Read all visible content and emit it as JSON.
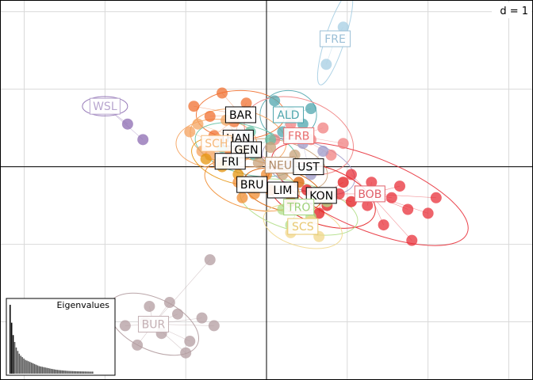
{
  "chart_data": {
    "type": "scatter",
    "title": "",
    "xlabel": "",
    "ylabel": "",
    "xlim": [
      -3.3,
      3.3
    ],
    "ylim": [
      -2.75,
      2.15
    ],
    "grid": true,
    "grid_step": 1,
    "scale_label": "d = 1",
    "inset": {
      "title": "Eigenvalues",
      "type": "bar",
      "values": [
        1.0,
        0.74,
        0.56,
        0.46,
        0.38,
        0.33,
        0.29,
        0.26,
        0.24,
        0.22,
        0.2,
        0.19,
        0.18,
        0.17,
        0.16,
        0.15,
        0.14,
        0.13,
        0.12,
        0.11,
        0.105,
        0.1,
        0.095,
        0.09,
        0.085,
        0.08,
        0.075,
        0.07,
        0.066,
        0.062,
        0.058,
        0.055,
        0.052,
        0.05,
        0.048,
        0.046,
        0.044,
        0.042,
        0.04,
        0.039,
        0.038,
        0.037,
        0.036,
        0.035,
        0.034,
        0.034,
        0.033,
        0.033,
        0.032,
        0.032,
        0.031,
        0.031,
        0.03,
        0.03,
        0.03
      ]
    },
    "groups": [
      {
        "label": "FRE",
        "color": "#a6cee3",
        "labelColor": "#9bbfd6",
        "center": [
          0.85,
          1.65
        ],
        "ellipse": {
          "rx": 0.6,
          "ry": 0.12,
          "angle": 72
        },
        "points": [
          [
            0.74,
            1.32
          ],
          [
            0.95,
            1.8
          ]
        ]
      },
      {
        "label": "WSL",
        "color": "#8c6bb1",
        "labelColor": "#b8a6cf",
        "center": [
          -2.0,
          0.78
        ],
        "ellipse": {
          "rx": 0.28,
          "ry": 0.12,
          "angle": 0
        },
        "points": [
          [
            -1.72,
            0.55
          ],
          [
            -1.53,
            0.35
          ]
        ]
      },
      {
        "label": "BAR",
        "color": "#f07030",
        "labelColor": "#000000",
        "center": [
          -0.32,
          0.67
        ],
        "ellipse": {
          "rx": 0.55,
          "ry": 0.3,
          "angle": 0
        },
        "points": [
          [
            -0.9,
            0.78
          ],
          [
            -0.7,
            0.65
          ],
          [
            -0.55,
            0.95
          ],
          [
            -0.4,
            0.58
          ],
          [
            -0.25,
            0.82
          ],
          [
            -0.65,
            0.4
          ],
          [
            -0.45,
            0.2
          ]
        ]
      },
      {
        "label": "ALD",
        "color": "#4fa6ad",
        "labelColor": "#4fa6ad",
        "center": [
          0.27,
          0.67
        ],
        "ellipse": {
          "rx": 0.35,
          "ry": 0.3,
          "angle": 0
        },
        "points": [
          [
            0.1,
            0.85
          ],
          [
            0.3,
            0.7
          ],
          [
            0.45,
            0.55
          ],
          [
            0.2,
            0.45
          ],
          [
            0.55,
            0.75
          ]
        ]
      },
      {
        "label": "HAN",
        "color": "#f4a460",
        "labelColor": "#000000",
        "center": [
          -0.35,
          0.37
        ],
        "ellipse": {
          "rx": 0.6,
          "ry": 0.35,
          "angle": -10
        },
        "points": [
          [
            -0.85,
            0.55
          ],
          [
            -0.6,
            0.35
          ],
          [
            -0.7,
            0.15
          ],
          [
            -0.3,
            0.25
          ],
          [
            -0.5,
            0.6
          ]
        ]
      },
      {
        "label": "SCH",
        "color": "#f5a25d",
        "labelColor": "#f5b87a",
        "center": [
          -0.62,
          0.3
        ],
        "ellipse": {
          "rx": 0.5,
          "ry": 0.3,
          "angle": 0
        },
        "points": [
          [
            -0.95,
            0.45
          ],
          [
            -0.8,
            0.2
          ],
          [
            -0.6,
            0.05
          ],
          [
            -0.45,
            0.4
          ]
        ]
      },
      {
        "label": "FRB",
        "color": "#f08080",
        "labelColor": "#e86e6e",
        "center": [
          0.4,
          0.4
        ],
        "ellipse": {
          "rx": 0.7,
          "ry": 0.45,
          "angle": -20
        },
        "points": [
          [
            0.1,
            0.35
          ],
          [
            0.3,
            0.55
          ],
          [
            0.55,
            0.35
          ],
          [
            0.7,
            0.5
          ],
          [
            0.8,
            0.15
          ],
          [
            0.95,
            0.3
          ]
        ]
      },
      {
        "label": "GEN",
        "color": "#66c2a5",
        "labelColor": "#000000",
        "center": [
          -0.25,
          0.22
        ],
        "ellipse": {
          "rx": 0.65,
          "ry": 0.3,
          "angle": -15
        },
        "points": [
          [
            -0.55,
            0.25
          ],
          [
            -0.4,
            0.05
          ],
          [
            -0.15,
            0.15
          ],
          [
            0.05,
            0.35
          ],
          [
            -0.2,
            0.45
          ]
        ]
      },
      {
        "label": "FRI",
        "color": "#e6950f",
        "labelColor": "#000000",
        "center": [
          -0.45,
          0.07
        ],
        "ellipse": {
          "rx": 0.5,
          "ry": 0.25,
          "angle": -20
        },
        "points": [
          [
            -0.75,
            0.1
          ],
          [
            -0.55,
            0.0
          ],
          [
            -0.35,
            -0.1
          ],
          [
            -0.3,
            0.2
          ]
        ]
      },
      {
        "label": "NEU",
        "color": "#c8a27a",
        "labelColor": "#b08a66",
        "center": [
          0.17,
          0.02
        ],
        "ellipse": {
          "rx": 0.6,
          "ry": 0.3,
          "angle": -15
        },
        "points": [
          [
            -0.1,
            0.05
          ],
          [
            0.2,
            -0.1
          ],
          [
            0.35,
            0.15
          ],
          [
            0.05,
            0.25
          ]
        ]
      },
      {
        "label": "UST",
        "color": "#9e9ac8",
        "labelColor": "#000000",
        "center": [
          0.52,
          0.0
        ],
        "ellipse": {
          "rx": 0.6,
          "ry": 0.3,
          "angle": -20
        },
        "points": [
          [
            0.3,
            0.05
          ],
          [
            0.55,
            -0.1
          ],
          [
            0.7,
            0.2
          ],
          [
            0.45,
            0.3
          ]
        ]
      },
      {
        "label": "BRU",
        "color": "#f08c30",
        "labelColor": "#000000",
        "center": [
          -0.18,
          -0.23
        ],
        "ellipse": {
          "rx": 0.6,
          "ry": 0.3,
          "angle": -15
        },
        "points": [
          [
            -0.35,
            -0.2
          ],
          [
            -0.15,
            -0.35
          ],
          [
            0.0,
            -0.1
          ],
          [
            -0.3,
            -0.4
          ]
        ]
      },
      {
        "label": "LIM",
        "color": "#d95f02",
        "labelColor": "#000000",
        "center": [
          0.2,
          -0.3
        ],
        "ellipse": {
          "rx": 0.5,
          "ry": 0.25,
          "angle": -15
        },
        "points": [
          [
            0.05,
            -0.3
          ],
          [
            0.3,
            -0.45
          ],
          [
            0.4,
            -0.2
          ]
        ]
      },
      {
        "label": "KON",
        "color": "#e31a1c",
        "labelColor": "#000000",
        "center": [
          0.68,
          -0.37
        ],
        "ellipse": {
          "rx": 0.7,
          "ry": 0.35,
          "angle": -20
        },
        "points": [
          [
            0.5,
            -0.3
          ],
          [
            0.75,
            -0.5
          ],
          [
            0.95,
            -0.2
          ],
          [
            0.65,
            -0.6
          ],
          [
            1.05,
            -0.45
          ]
        ]
      },
      {
        "label": "BOB",
        "color": "#e8303a",
        "labelColor": "#e0606a",
        "center": [
          1.28,
          -0.35
        ],
        "ellipse": {
          "rx": 1.3,
          "ry": 0.45,
          "angle": -22
        },
        "points": [
          [
            1.05,
            -0.1
          ],
          [
            1.3,
            -0.2
          ],
          [
            1.55,
            -0.4
          ],
          [
            1.75,
            -0.55
          ],
          [
            2.0,
            -0.6
          ],
          [
            1.45,
            -0.75
          ],
          [
            1.8,
            -0.95
          ],
          [
            1.25,
            -0.5
          ],
          [
            0.9,
            -0.35
          ],
          [
            2.1,
            -0.4
          ],
          [
            1.65,
            -0.25
          ]
        ]
      },
      {
        "label": "TRO",
        "color": "#b2df8a",
        "labelColor": "#9fd17a",
        "center": [
          0.4,
          -0.52
        ],
        "ellipse": {
          "rx": 0.75,
          "ry": 0.3,
          "angle": -15
        },
        "points": [
          [
            0.2,
            -0.55
          ],
          [
            0.55,
            -0.65
          ],
          [
            0.75,
            -0.45
          ],
          [
            0.3,
            -0.75
          ]
        ]
      },
      {
        "label": "SCS",
        "color": "#f1d78a",
        "labelColor": "#e8c870",
        "center": [
          0.45,
          -0.77
        ],
        "ellipse": {
          "rx": 0.5,
          "ry": 0.25,
          "angle": -15
        },
        "points": [
          [
            0.3,
            -0.85
          ],
          [
            0.55,
            -0.7
          ],
          [
            0.65,
            -0.9
          ]
        ]
      },
      {
        "label": "BUR",
        "color": "#b39ca0",
        "labelColor": "#c4b0b4",
        "center": [
          -1.4,
          -2.03
        ],
        "ellipse": {
          "rx": 0.6,
          "ry": 0.32,
          "angle": -25
        },
        "points": [
          [
            -1.75,
            -2.05
          ],
          [
            -1.6,
            -2.3
          ],
          [
            -1.45,
            -1.8
          ],
          [
            -1.3,
            -2.15
          ],
          [
            -1.1,
            -1.9
          ],
          [
            -0.95,
            -2.25
          ],
          [
            -0.8,
            -1.95
          ],
          [
            -1.2,
            -1.75
          ],
          [
            -1.0,
            -2.4
          ],
          [
            -1.5,
            -2.0
          ],
          [
            -0.65,
            -2.05
          ],
          [
            -0.7,
            -1.2
          ]
        ]
      }
    ]
  }
}
